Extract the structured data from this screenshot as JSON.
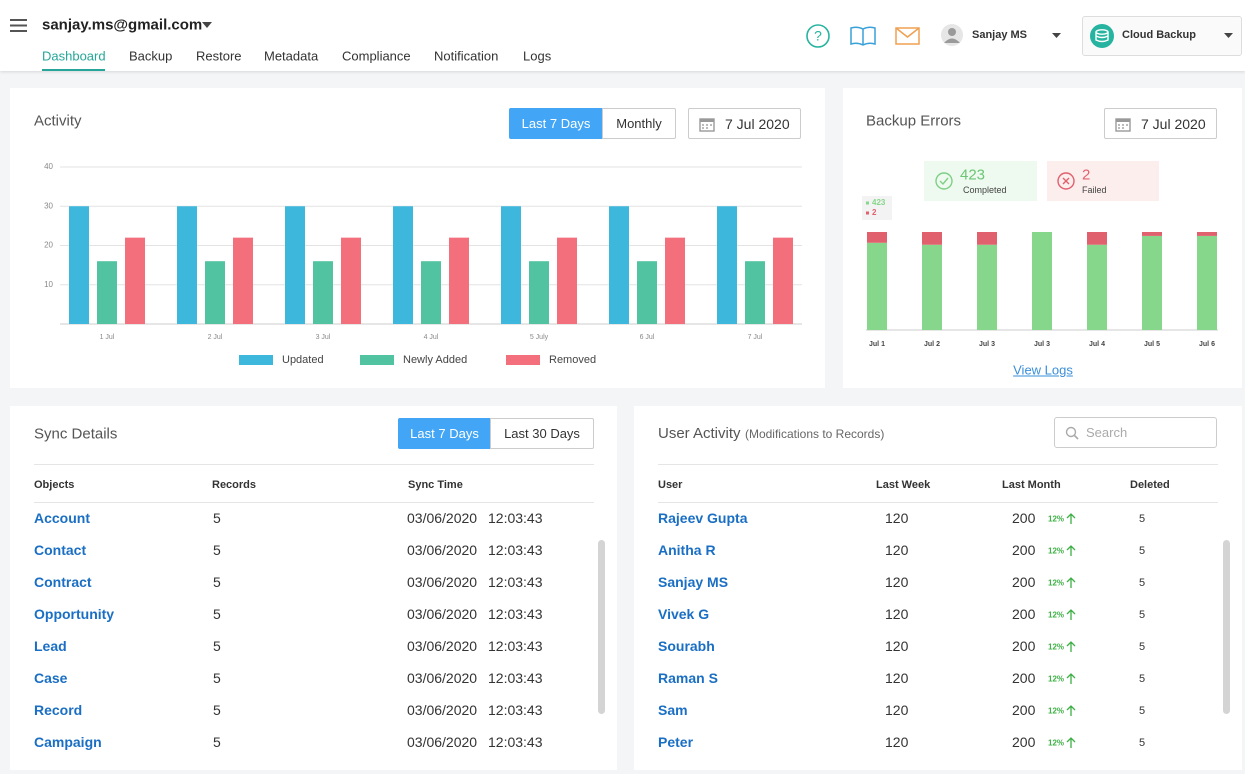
{
  "header": {
    "account": "sanjay.ms@gmail.com",
    "tabs": [
      "Dashboard",
      "Backup",
      "Restore",
      "Metadata",
      "Compliance",
      "Notification",
      "Logs"
    ],
    "user": "Sanjay MS",
    "product": "Cloud Backup"
  },
  "activity": {
    "title": "Activity",
    "ranges": [
      "Last 7 Days",
      "Monthly"
    ],
    "date": "7 Jul 2020"
  },
  "backup_errors": {
    "title": "Backup Errors",
    "date": "7 Jul 2020",
    "completed": {
      "value": 423,
      "label": "Completed"
    },
    "failed": {
      "value": 2,
      "label": "Failed"
    },
    "link": "View Logs"
  },
  "chart_data": [
    {
      "type": "bar",
      "categories": [
        "1 Jul",
        "2 Jul",
        "3 Jul",
        "4 Jul",
        "5 July",
        "6 Jul",
        "7 Jul"
      ],
      "ylim": [
        0,
        40
      ],
      "yticks": [
        10,
        20,
        30,
        40
      ],
      "grid": true,
      "series": [
        {
          "name": "Updated",
          "color": "#3db8dc",
          "values": [
            30,
            30,
            30,
            30,
            30,
            30,
            30
          ]
        },
        {
          "name": "Newly Added",
          "color": "#52c3a0",
          "values": [
            16,
            16,
            16,
            16,
            16,
            16,
            16
          ]
        },
        {
          "name": "Removed",
          "color": "#f36f7c",
          "values": [
            22,
            22,
            22,
            22,
            22,
            22,
            22
          ]
        }
      ]
    },
    {
      "type": "stacked_bar",
      "categories": [
        "Jul 1",
        "Jul 2",
        "Jul 3",
        "Jul 3",
        "Jul 4",
        "Jul 5",
        "Jul 6"
      ],
      "ylim": [
        0,
        100
      ],
      "series": [
        {
          "name": "423",
          "color": "#86d68b",
          "values": [
            89,
            87,
            87,
            100,
            87,
            96,
            96
          ]
        },
        {
          "name": "2",
          "color": "#e0606e",
          "values": [
            11,
            13,
            13,
            0,
            13,
            4,
            4
          ]
        }
      ]
    }
  ],
  "sync_details": {
    "title": "Sync Details",
    "ranges": [
      "Last 7 Days",
      "Last 30 Days"
    ],
    "columns": [
      "Objects",
      "Records",
      "Sync Time"
    ],
    "rows": [
      [
        "Account",
        5,
        "03/06/2020",
        "12:03:43"
      ],
      [
        "Contact",
        5,
        "03/06/2020",
        "12:03:43"
      ],
      [
        "Contract",
        5,
        "03/06/2020",
        "12:03:43"
      ],
      [
        "Opportunity",
        5,
        "03/06/2020",
        "12:03:43"
      ],
      [
        "Lead",
        5,
        "03/06/2020",
        "12:03:43"
      ],
      [
        "Case",
        5,
        "03/06/2020",
        "12:03:43"
      ],
      [
        "Record",
        5,
        "03/06/2020",
        "12:03:43"
      ],
      [
        "Campaign",
        5,
        "03/06/2020",
        "12:03:43"
      ]
    ]
  },
  "user_activity": {
    "title": "User Activity",
    "subtitle": "(Modifications to Records)",
    "search_placeholder": "Search",
    "columns": [
      "User",
      "Last Week",
      "Last Month",
      "Deleted"
    ],
    "rows": [
      [
        "Rajeev Gupta",
        120,
        200,
        "12%",
        5
      ],
      [
        "Anitha R",
        120,
        200,
        "12%",
        5
      ],
      [
        "Sanjay MS",
        120,
        200,
        "12%",
        5
      ],
      [
        "Vivek G",
        120,
        200,
        "12%",
        5
      ],
      [
        "Sourabh",
        120,
        200,
        "12%",
        5
      ],
      [
        "Raman S",
        120,
        200,
        "12%",
        5
      ],
      [
        "Sam",
        120,
        200,
        "12%",
        5
      ],
      [
        "Peter",
        120,
        200,
        "12%",
        5
      ]
    ]
  }
}
